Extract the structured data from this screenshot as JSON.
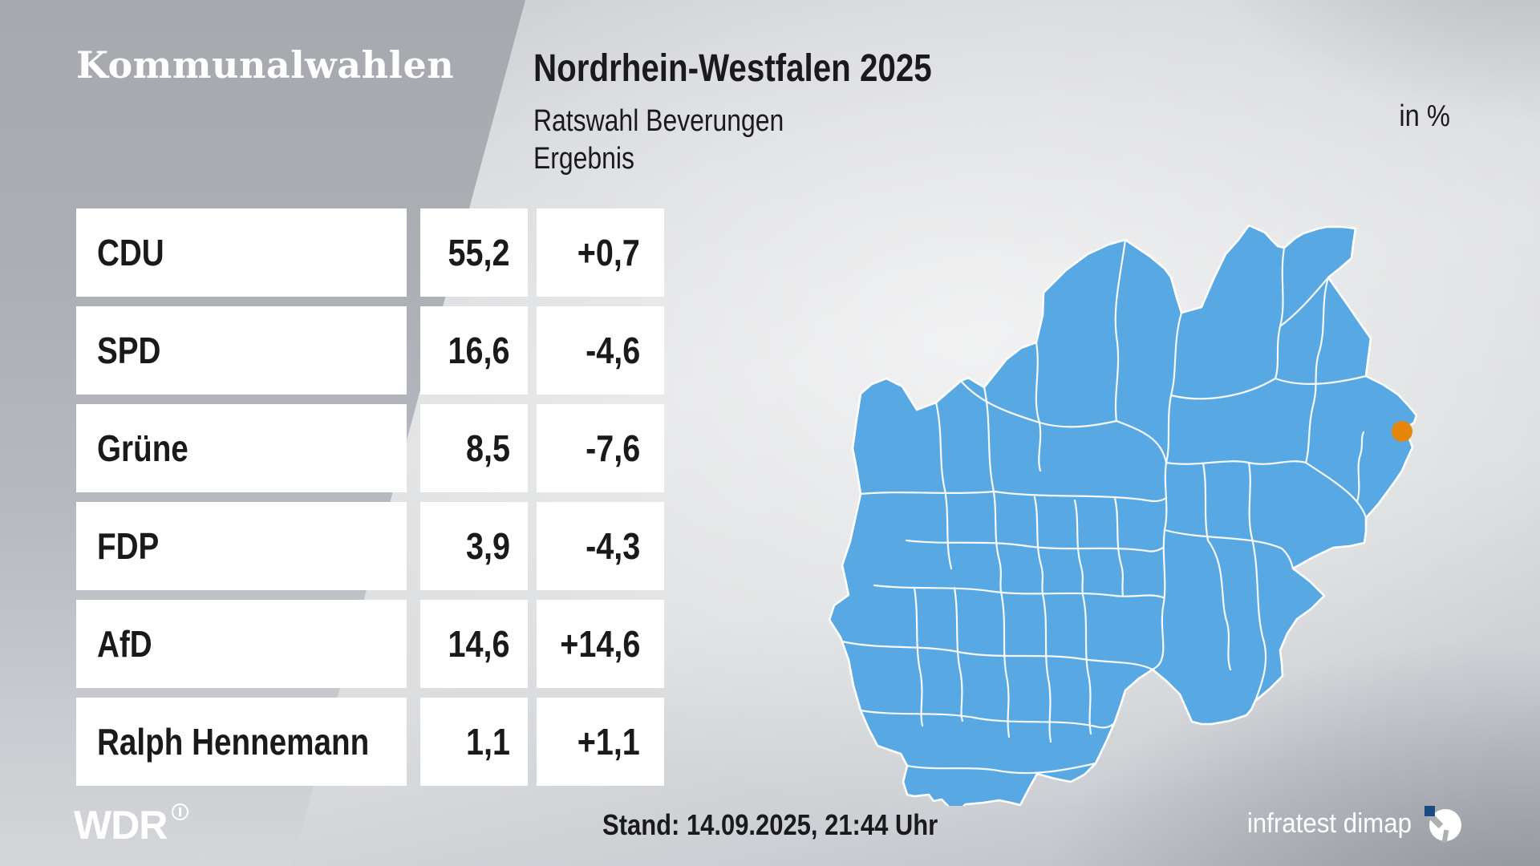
{
  "brand": {
    "program_label": "Kommunalwahlen",
    "broadcaster": "WDR",
    "source_label": "infratest dimap"
  },
  "header": {
    "title": "Nordrhein-Westfalen 2025",
    "subtitle": "Ratswahl Beverungen",
    "result_label": "Ergebnis",
    "unit_label": "in %"
  },
  "footer": {
    "stand_label": "Stand: 14.09.2025, 21:44 Uhr"
  },
  "map": {
    "region": "Nordrhein-Westfalen",
    "marker_town": "Beverungen",
    "fill_color": "#57a8e3",
    "border_color": "#ffffff",
    "marker_color": "#e5860b"
  },
  "colors": {
    "panel_dark": "#abaeb3",
    "panel_light": "#e1e2e4",
    "cell_bg": "#ffffff",
    "text": "#1a1a1c",
    "dimap_blue": "#1a4a80"
  },
  "chart_data": {
    "type": "table",
    "title": "Nordrhein-Westfalen 2025 – Ratswahl Beverungen – Ergebnis",
    "unit": "in %",
    "rows": [
      {
        "party": "CDU",
        "value": "55,2",
        "change": "+0,7"
      },
      {
        "party": "SPD",
        "value": "16,6",
        "change": "-4,6"
      },
      {
        "party": "Grüne",
        "value": "8,5",
        "change": "-7,6"
      },
      {
        "party": "FDP",
        "value": "3,9",
        "change": "-4,3"
      },
      {
        "party": "AfD",
        "value": "14,6",
        "change": "+14,6"
      },
      {
        "party": "Ralph Hennemann",
        "value": "1,1",
        "change": "+1,1"
      }
    ]
  }
}
